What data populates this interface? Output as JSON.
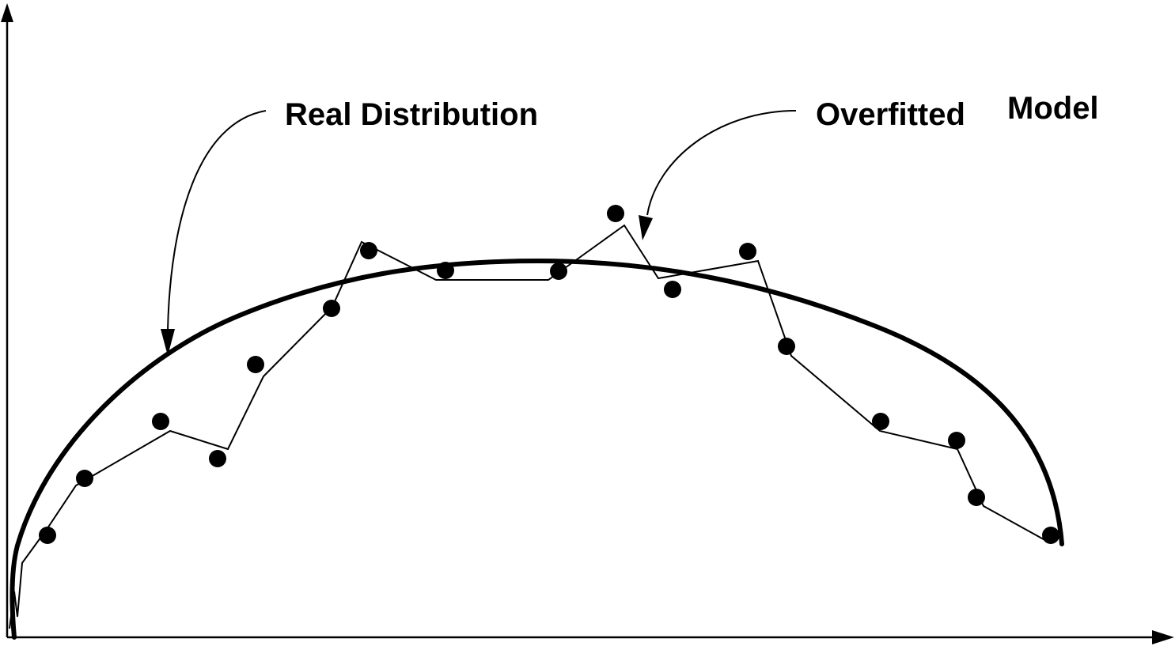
{
  "labels": {
    "real_distribution": "Real Distribution",
    "overfitted": "Overfitted",
    "model": "Model"
  },
  "colors": {
    "ink": "#000000",
    "background": "#ffffff"
  }
}
